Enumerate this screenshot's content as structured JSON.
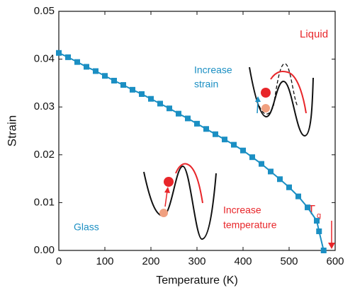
{
  "chart_data": {
    "type": "line",
    "x_label": "Temperature (K)",
    "y_label": "Strain",
    "x": [
      0,
      20,
      40,
      60,
      80,
      100,
      120,
      140,
      160,
      180,
      200,
      220,
      240,
      260,
      280,
      300,
      320,
      340,
      360,
      380,
      400,
      420,
      440,
      460,
      480,
      500,
      520,
      540,
      560,
      565,
      575
    ],
    "series": [
      {
        "color": "#1b8fc3",
        "values": [
          0.0413,
          0.0404,
          0.0394,
          0.0384,
          0.0375,
          0.0365,
          0.0355,
          0.0346,
          0.0336,
          0.0327,
          0.0317,
          0.0307,
          0.0297,
          0.0286,
          0.0276,
          0.0265,
          0.0254,
          0.0243,
          0.0232,
          0.0221,
          0.0209,
          0.0195,
          0.0181,
          0.0165,
          0.0149,
          0.0132,
          0.0113,
          0.009,
          0.0062,
          0.004,
          0.0
        ]
      }
    ],
    "xlim": [
      0,
      600
    ],
    "xticks": [
      0,
      100,
      200,
      300,
      400,
      500,
      600
    ],
    "ylim": [
      0,
      0.05
    ],
    "yticks": [
      {
        "value": 0,
        "label": "0.00"
      },
      {
        "value": 0.01,
        "label": "0.01"
      },
      {
        "value": 0.02,
        "label": "0.02"
      },
      {
        "value": 0.03,
        "label": "0.03"
      },
      {
        "value": 0.04,
        "label": "0.04"
      },
      {
        "value": 0.05,
        "label": "0.05"
      }
    ],
    "annotations": [
      "Liquid",
      "Increase",
      "strain",
      "Glass",
      "Increase",
      "temperature",
      "T",
      "g"
    ]
  }
}
